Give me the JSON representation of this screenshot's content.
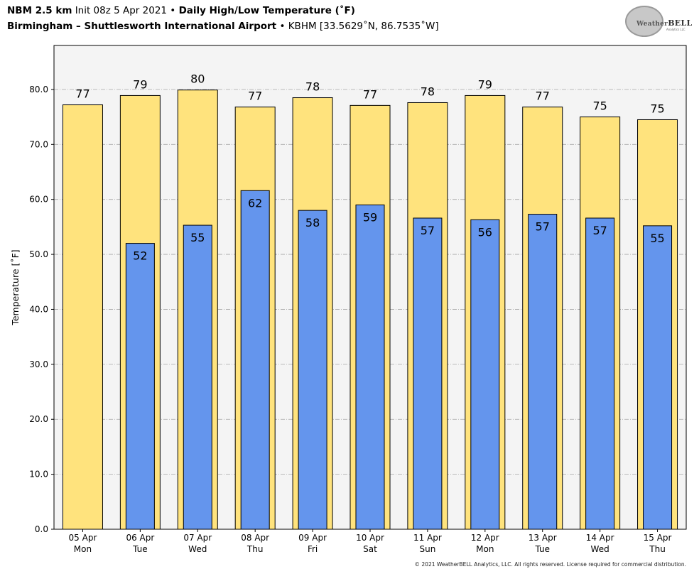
{
  "header": {
    "model": "NBM 2.5 km",
    "init": "Init 08z 5 Apr 2021",
    "bullet": "•",
    "product": "Daily High/Low Temperature (˚F)",
    "station_name": "Birmingham – Shuttlesworth International Airport",
    "station_info": "KBHM [33.5629˚N, 86.7535˚W]"
  },
  "logo": {
    "text_small": "Weather",
    "text_big": "BELL",
    "sub": "Analytics LLC"
  },
  "footer": "© 2021 WeatherBELL Analytics, LLC. All rights reserved. License required for commercial distribution.",
  "colors": {
    "high_fill": "#ffe37d",
    "low_fill": "#6495ed",
    "plot_bg": "#f4f4f4",
    "grid": "#a8a8a8"
  },
  "chart_data": {
    "type": "bar",
    "ylabel": "Temperature [˚F]",
    "ylim": [
      0,
      88
    ],
    "yticks": [
      "0.0",
      "10.0",
      "20.0",
      "30.0",
      "40.0",
      "50.0",
      "60.0",
      "70.0",
      "80.0"
    ],
    "grid": true,
    "categories": [
      [
        "05 Apr",
        "Mon"
      ],
      [
        "06 Apr",
        "Tue"
      ],
      [
        "07 Apr",
        "Wed"
      ],
      [
        "08 Apr",
        "Thu"
      ],
      [
        "09 Apr",
        "Fri"
      ],
      [
        "10 Apr",
        "Sat"
      ],
      [
        "11 Apr",
        "Sun"
      ],
      [
        "12 Apr",
        "Mon"
      ],
      [
        "13 Apr",
        "Tue"
      ],
      [
        "14 Apr",
        "Wed"
      ],
      [
        "15 Apr",
        "Thu"
      ]
    ],
    "series": [
      {
        "key": "high",
        "values": [
          77.2,
          78.9,
          79.9,
          76.8,
          78.5,
          77.1,
          77.6,
          78.9,
          76.8,
          75.0,
          74.5
        ],
        "labels": [
          "77",
          "79",
          "80",
          "77",
          "78",
          "77",
          "78",
          "79",
          "77",
          "75",
          "75"
        ]
      },
      {
        "key": "low",
        "values": [
          null,
          52.0,
          55.3,
          61.6,
          58.0,
          59.0,
          56.6,
          56.3,
          57.3,
          56.6,
          55.2
        ],
        "labels": [
          "",
          "52",
          "55",
          "62",
          "58",
          "59",
          "57",
          "56",
          "57",
          "57",
          "55"
        ]
      }
    ]
  }
}
